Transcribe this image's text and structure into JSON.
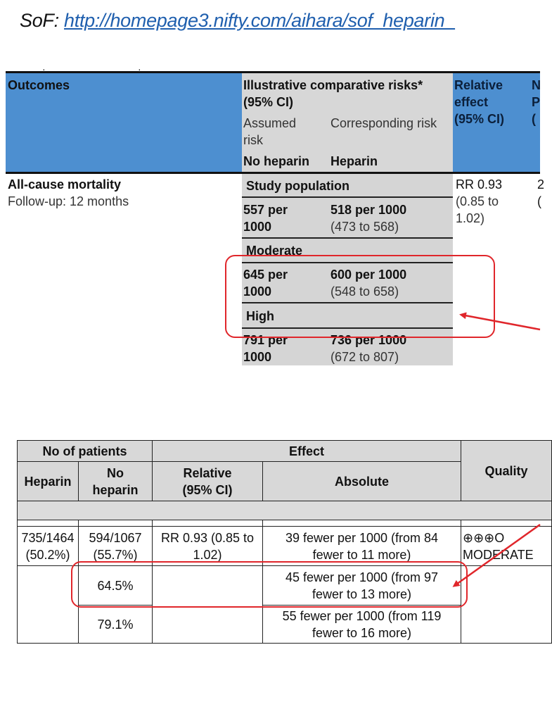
{
  "slide": {
    "prefix": "SoF: ",
    "url": "http://homepage3.nifty.com/aihara/sof_heparin_"
  },
  "sof": {
    "header": {
      "outcomes": "Outcomes",
      "risks_title_1": "Illustrative comparative risks*",
      "risks_title_2": "(95% CI)",
      "assumed_1": "Assumed",
      "assumed_2": "risk",
      "corresponding": "Corresponding risk",
      "no_heparin": "No heparin",
      "heparin": "Heparin",
      "relative_1": "Relative",
      "relative_2": "effect",
      "relative_3": "(95% CI)",
      "clip_1": "N",
      "clip_2": "P",
      "clip_3": "("
    },
    "row": {
      "outcome": "All-cause mortality",
      "followup": "Follow-up: 12 months",
      "rr_1": "RR 0.93",
      "rr_2": "(0.85 to",
      "rr_3": "1.02)",
      "clip_1": "2",
      "clip_2": "("
    },
    "groups": [
      {
        "label": "Study population",
        "assumed_1": "557 per",
        "assumed_2": "1000",
        "corr": "518 per 1000",
        "ci": "(473 to 568)"
      },
      {
        "label": "Moderate",
        "assumed_1": "645 per",
        "assumed_2": "1000",
        "corr": "600 per 1000",
        "ci": "(548 to 658)"
      },
      {
        "label": "High",
        "assumed_1": "791 per",
        "assumed_2": "1000",
        "corr": "736 per 1000",
        "ci": "(672 to 807)"
      }
    ]
  },
  "ep": {
    "header": {
      "patients": "No of patients",
      "effect": "Effect",
      "quality": "Quality",
      "heparin": "Heparin",
      "no_heparin_1": "No",
      "no_heparin_2": "heparin",
      "relative_1": "Relative",
      "relative_2": "(95% CI)",
      "absolute": "Absolute"
    },
    "rows": [
      {
        "heparin_1": "735/1464",
        "heparin_2": "(50.2%)",
        "no_1": "594/1067",
        "no_2": "(55.7%)",
        "rel_1": "RR 0.93 (0.85 to",
        "rel_2": "1.02)",
        "abs_1": "39 fewer per 1000 (from 84",
        "abs_2": "fewer to 11 more)",
        "quality_1": "⊕⊕⊕O",
        "quality_2": "MODERATE"
      },
      {
        "no": "64.5%",
        "abs_1": "45 fewer per 1000 (from 97",
        "abs_2": "fewer to 13 more)"
      },
      {
        "no": "79.1%",
        "abs_1": "55 fewer per 1000 (from 119",
        "abs_2": "fewer to 16 more)"
      }
    ]
  },
  "colors": {
    "header_blue": "#4d8fd0",
    "header_gray": "#d7d7d7",
    "annotation_red": "#e0262b",
    "link_blue": "#1f5fae"
  }
}
